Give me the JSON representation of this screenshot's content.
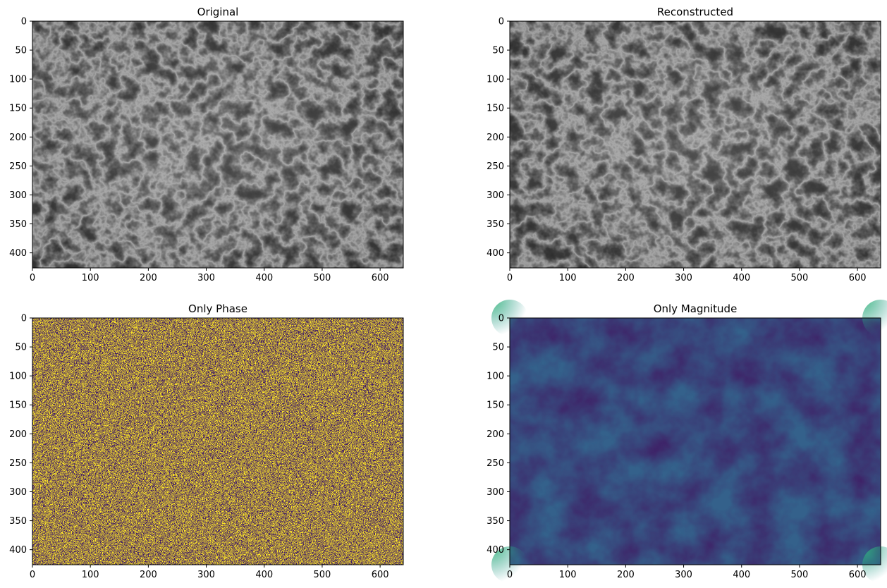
{
  "chart_data": [
    {
      "type": "heatmap",
      "title": "Original",
      "colormap": "gray",
      "image_width": 640,
      "image_height": 426,
      "xlim": [
        0,
        640
      ],
      "ylim": [
        426,
        0
      ],
      "xticks": [
        0,
        100,
        200,
        300,
        400,
        500,
        600
      ],
      "yticks": [
        0,
        50,
        100,
        150,
        200,
        250,
        300,
        350,
        400
      ]
    },
    {
      "type": "heatmap",
      "title": "Reconstructed",
      "colormap": "gray",
      "image_width": 640,
      "image_height": 426,
      "xlim": [
        0,
        640
      ],
      "ylim": [
        426,
        0
      ],
      "xticks": [
        0,
        100,
        200,
        300,
        400,
        500,
        600
      ],
      "yticks": [
        0,
        50,
        100,
        150,
        200,
        250,
        300,
        350,
        400
      ]
    },
    {
      "type": "heatmap",
      "title": "Only Phase",
      "colormap": "viridis",
      "image_width": 640,
      "image_height": 426,
      "xlim": [
        0,
        640
      ],
      "ylim": [
        426,
        0
      ],
      "xticks": [
        0,
        100,
        200,
        300,
        400,
        500,
        600
      ],
      "yticks": [
        0,
        50,
        100,
        150,
        200,
        250,
        300,
        350,
        400
      ]
    },
    {
      "type": "heatmap",
      "title": "Only Magnitude",
      "colormap": "viridis",
      "image_width": 640,
      "image_height": 426,
      "xlim": [
        0,
        640
      ],
      "ylim": [
        426,
        0
      ],
      "xticks": [
        0,
        100,
        200,
        300,
        400,
        500,
        600
      ],
      "yticks": [
        0,
        50,
        100,
        150,
        200,
        250,
        300,
        350,
        400
      ]
    }
  ],
  "colors": {
    "gray_dark": "#161616",
    "gray_mid": "#5a5a5a",
    "gray_light": "#f0f0f0",
    "viridis_dark": "#440154",
    "viridis_blue": "#3b528b",
    "viridis_teal": "#21918c",
    "viridis_yellow": "#fde725"
  }
}
